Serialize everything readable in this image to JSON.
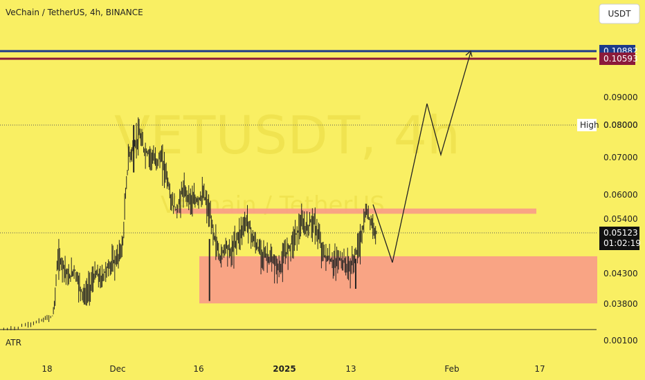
{
  "header": {
    "symbol_title": "VeChain / TetherUS, 4h, BINANCE",
    "currency_button": "USDT"
  },
  "watermark": {
    "ticker": "VETUSDT, 4h",
    "name": "VeChain / TetherUS"
  },
  "colors": {
    "background": "#f9ef63",
    "candle": "#222222",
    "zone": "#f99f86",
    "blue_line": "#1c3a8a",
    "maroon_line": "#8b1a3a",
    "price_badge": "#111111",
    "grid_dotted": "#555555"
  },
  "chart_data": {
    "type": "candlestick",
    "title": "VeChain / TetherUS, 4h, BINANCE",
    "y_ticks": [
      0.09,
      0.08,
      0.07,
      0.06,
      0.054,
      0.043,
      0.038
    ],
    "y_tick_labels": [
      "0.09000",
      "0.08000",
      "0.07000",
      "0.06000",
      "0.05400",
      "0.04300",
      "0.03800"
    ],
    "x_ticks": [
      "18",
      "Dec",
      "16",
      "2025",
      "13",
      "Feb",
      "17"
    ],
    "price_lines": [
      {
        "value": 0.10882,
        "label": "0.10882",
        "color": "#1c3a8a"
      },
      {
        "value": 0.10593,
        "label": "0.10593",
        "color": "#8b1a3a"
      }
    ],
    "high_line": {
      "label": "High",
      "value_label": "0.08000",
      "value": 0.08
    },
    "current_price": {
      "label": "0.05123",
      "value": 0.05123,
      "countdown": "01:02:19"
    },
    "zones": [
      {
        "from": 0.0553,
        "to": 0.0566,
        "color": "#f99f86"
      },
      {
        "from": 0.0381,
        "to": 0.0465,
        "color": "#f99f86"
      }
    ],
    "projection": [
      {
        "x": "2025-01-18",
        "y": 0.0465
      },
      {
        "x": "2025-01-26",
        "y": 0.0875
      },
      {
        "x": "2025-01-30",
        "y": 0.071
      },
      {
        "x": "2025-02-05",
        "y": 0.10882
      }
    ],
    "price_series": [
      {
        "x": "2024-11-10",
        "y": 0.027
      },
      {
        "x": "2024-11-14",
        "y": 0.029
      },
      {
        "x": "2024-11-17",
        "y": 0.031
      },
      {
        "x": "2024-11-19",
        "y": 0.033
      },
      {
        "x": "2024-11-20",
        "y": 0.046
      },
      {
        "x": "2024-11-21",
        "y": 0.045
      },
      {
        "x": "2024-11-22",
        "y": 0.042
      },
      {
        "x": "2024-11-23",
        "y": 0.044
      },
      {
        "x": "2024-11-24",
        "y": 0.041
      },
      {
        "x": "2024-11-25",
        "y": 0.039
      },
      {
        "x": "2024-11-26",
        "y": 0.041
      },
      {
        "x": "2024-11-27",
        "y": 0.043
      },
      {
        "x": "2024-11-28",
        "y": 0.042
      },
      {
        "x": "2024-11-29",
        "y": 0.044
      },
      {
        "x": "2024-11-30",
        "y": 0.045
      },
      {
        "x": "2024-12-01",
        "y": 0.046
      },
      {
        "x": "2024-12-02",
        "y": 0.049
      },
      {
        "x": "2024-12-03",
        "y": 0.07
      },
      {
        "x": "2024-12-04",
        "y": 0.073
      },
      {
        "x": "2024-12-05",
        "y": 0.077
      },
      {
        "x": "2024-12-06",
        "y": 0.072
      },
      {
        "x": "2024-12-07",
        "y": 0.071
      },
      {
        "x": "2024-12-08",
        "y": 0.069
      },
      {
        "x": "2024-12-09",
        "y": 0.07
      },
      {
        "x": "2024-12-10",
        "y": 0.066
      },
      {
        "x": "2024-12-11",
        "y": 0.058
      },
      {
        "x": "2024-12-12",
        "y": 0.056
      },
      {
        "x": "2024-12-13",
        "y": 0.061
      },
      {
        "x": "2024-12-14",
        "y": 0.06
      },
      {
        "x": "2024-12-15",
        "y": 0.058
      },
      {
        "x": "2024-12-16",
        "y": 0.059
      },
      {
        "x": "2024-12-17",
        "y": 0.06
      },
      {
        "x": "2024-12-18",
        "y": 0.055
      },
      {
        "x": "2024-12-19",
        "y": 0.05
      },
      {
        "x": "2024-12-20",
        "y": 0.046
      },
      {
        "x": "2024-12-21",
        "y": 0.049
      },
      {
        "x": "2024-12-22",
        "y": 0.047
      },
      {
        "x": "2024-12-23",
        "y": 0.05
      },
      {
        "x": "2024-12-24",
        "y": 0.052
      },
      {
        "x": "2024-12-25",
        "y": 0.054
      },
      {
        "x": "2024-12-26",
        "y": 0.05
      },
      {
        "x": "2024-12-27",
        "y": 0.048
      },
      {
        "x": "2024-12-28",
        "y": 0.047
      },
      {
        "x": "2024-12-29",
        "y": 0.046
      },
      {
        "x": "2024-12-30",
        "y": 0.045
      },
      {
        "x": "2024-12-31",
        "y": 0.044
      },
      {
        "x": "2025-01-01",
        "y": 0.047
      },
      {
        "x": "2025-01-02",
        "y": 0.049
      },
      {
        "x": "2025-01-03",
        "y": 0.051
      },
      {
        "x": "2025-01-04",
        "y": 0.053
      },
      {
        "x": "2025-01-05",
        "y": 0.052
      },
      {
        "x": "2025-01-06",
        "y": 0.054
      },
      {
        "x": "2025-01-07",
        "y": 0.051
      },
      {
        "x": "2025-01-08",
        "y": 0.047
      },
      {
        "x": "2025-01-09",
        "y": 0.046
      },
      {
        "x": "2025-01-10",
        "y": 0.045
      },
      {
        "x": "2025-01-11",
        "y": 0.046
      },
      {
        "x": "2025-01-12",
        "y": 0.045
      },
      {
        "x": "2025-01-13",
        "y": 0.044
      },
      {
        "x": "2025-01-14",
        "y": 0.047
      },
      {
        "x": "2025-01-15",
        "y": 0.05
      },
      {
        "x": "2025-01-16",
        "y": 0.056
      },
      {
        "x": "2025-01-17",
        "y": 0.053
      },
      {
        "x": "2025-01-18",
        "y": 0.0512
      }
    ],
    "x_range": [
      "2024-11-10",
      "2025-02-24"
    ],
    "ylim": [
      0.001,
      0.11
    ],
    "grid": false,
    "lower_panel": {
      "label": "ATR",
      "value_label": "0.00100"
    }
  }
}
